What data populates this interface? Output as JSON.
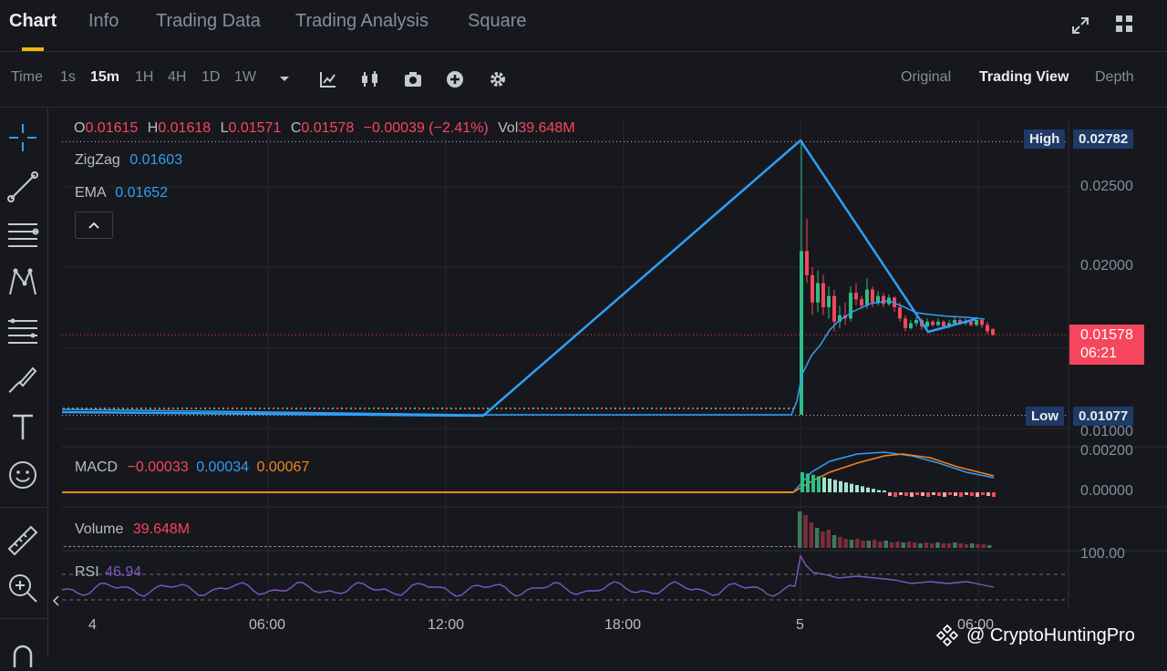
{
  "nav": {
    "tabs": [
      {
        "label": "Chart"
      },
      {
        "label": "Info"
      },
      {
        "label": "Trading Data"
      },
      {
        "label": "Trading Analysis"
      },
      {
        "label": "Square"
      }
    ]
  },
  "toolbar": {
    "intervals": [
      "Time",
      "1s",
      "15m",
      "1H",
      "4H",
      "1D",
      "1W"
    ],
    "active_interval": "15m",
    "views": [
      "Original",
      "Trading View",
      "Depth"
    ],
    "active_view": "Trading View"
  },
  "legend": {
    "o_label": "O",
    "o_value": "0.01615",
    "h_label": "H",
    "h_value": "0.01618",
    "l_label": "L",
    "l_value": "0.01571",
    "c_label": "C",
    "c_value": "0.01578",
    "change": "−0.00039 (−2.41%)",
    "vol_label": "Vol",
    "vol_value": "39.648M",
    "zigzag_label": "ZigZag",
    "zigzag_value": "0.01603",
    "ema_label": "EMA",
    "ema_value": "0.01652",
    "macd_label": "MACD",
    "macd_v1": "−0.00033",
    "macd_v2": "0.00034",
    "macd_v3": "0.00067",
    "volume_label": "Volume",
    "volume_value": "39.648M",
    "rsi_label": "RSI",
    "rsi_value": "46.94"
  },
  "price_axis": {
    "high_label": "High",
    "high_value": "0.02782",
    "low_label": "Low",
    "low_value": "0.01077",
    "current_price": "0.01578",
    "countdown": "06:21",
    "ticks": [
      "0.02500",
      "0.02000",
      "0.01000"
    ],
    "macd_ticks": [
      "0.00200",
      "0.00000"
    ],
    "rsi_ticks": [
      "100.00"
    ]
  },
  "time_axis": {
    "ticks": [
      "4",
      "06:00",
      "12:00",
      "18:00",
      "5",
      "06:00"
    ]
  },
  "watermark": "@ CryptoHuntingPro",
  "colors": {
    "accent": "#f0b90b",
    "up": "#2ebd85",
    "down": "#f6465d",
    "zigzag": "#2f9ff8",
    "ema": "#2f9ff8",
    "macd_signal": "#f0871e",
    "rsi": "#7e57c2"
  }
}
